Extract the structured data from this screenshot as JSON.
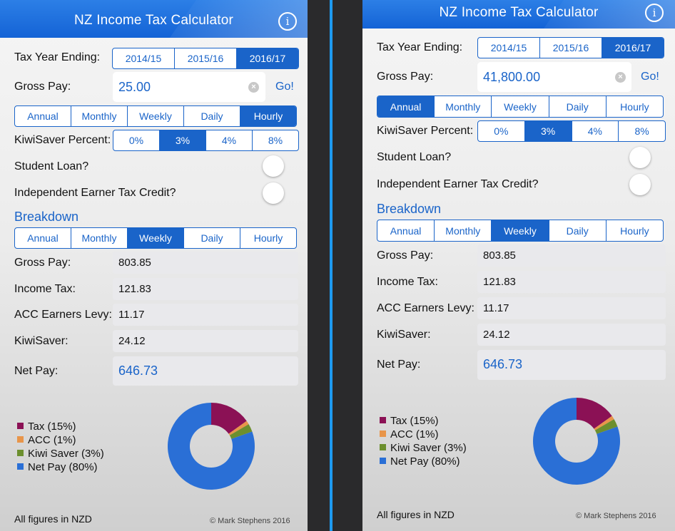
{
  "app": {
    "title": "NZ Income Tax Calculator",
    "info_icon": "info-circle-icon",
    "accent": "#1a64c9"
  },
  "labels": {
    "tax_year": "Tax Year Ending:",
    "gross_pay": "Gross Pay:",
    "go": "Go!",
    "kiwisaver_percent": "KiwiSaver Percent:",
    "student_loan": "Student Loan?",
    "ietc": "Independent Earner Tax Credit?",
    "breakdown": "Breakdown",
    "bd_gross": "Gross Pay:",
    "bd_income_tax": "Income Tax:",
    "bd_acc": "ACC Earners Levy:",
    "bd_kiwisaver": "KiwiSaver:",
    "bd_net": "Net Pay:",
    "footer": "All figures in NZD",
    "copyright": "© Mark Stephens 2016"
  },
  "tax_years": [
    "2014/15",
    "2015/16",
    "2016/17"
  ],
  "periods": [
    "Annual",
    "Monthly",
    "Weekly",
    "Daily",
    "Hourly"
  ],
  "kiwisaver_options": [
    "0%",
    "3%",
    "4%",
    "8%"
  ],
  "legend": [
    {
      "label": "Tax (15%)",
      "color": "#8b1155"
    },
    {
      "label": "ACC (1%)",
      "color": "#e8954a"
    },
    {
      "label": "Kiwi Saver (3%)",
      "color": "#6c8f2e"
    },
    {
      "label": "Net Pay (80%)",
      "color": "#2a6fd6"
    }
  ],
  "screens": [
    {
      "selected_year": "2016/17",
      "gross_input": "25.00",
      "input_period": "Hourly",
      "kiwisaver": "3%",
      "student_loan": false,
      "ietc": false,
      "breakdown_period": "Weekly",
      "breakdown": {
        "gross": "803.85",
        "income_tax": "121.83",
        "acc": "11.17",
        "kiwisaver": "24.12",
        "net": "646.73"
      }
    },
    {
      "selected_year": "2016/17",
      "gross_input": "41,800.00",
      "input_period": "Annual",
      "kiwisaver": "3%",
      "student_loan": false,
      "ietc": false,
      "breakdown_period": "Weekly",
      "breakdown": {
        "gross": "803.85",
        "income_tax": "121.83",
        "acc": "11.17",
        "kiwisaver": "24.12",
        "net": "646.73"
      }
    }
  ],
  "chart_data": {
    "type": "pie",
    "categories": [
      "Tax",
      "ACC",
      "Kiwi Saver",
      "Net Pay"
    ],
    "values": [
      121.83,
      11.17,
      24.12,
      646.73
    ],
    "colors": [
      "#8b1155",
      "#e8954a",
      "#6c8f2e",
      "#2a6fd6"
    ]
  }
}
